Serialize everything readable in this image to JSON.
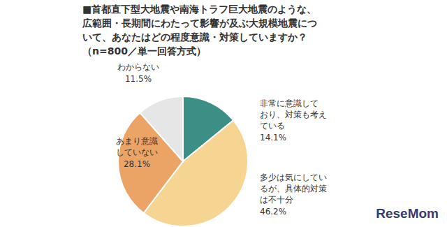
{
  "chart_data": {
    "type": "pie",
    "title": "■首都直下型大地震や南海トラフ巨大地震のような、\n広範囲・長期間にわたって影響が及ぶ大規模地震につ\nいて、あなたはどの程度意識・対策していますか？",
    "subtitle": "（n=800／単一回答方式）",
    "categories": [
      "非常に意識して\nおり、対策も考え\nている",
      "多少は気にしてい\nるが、具体的対策\nは不十分",
      "あまり意識\nしていない",
      "わからない"
    ],
    "values": [
      14.1,
      46.2,
      28.1,
      11.5
    ],
    "value_labels": [
      "14.1%",
      "46.2%",
      "28.1%",
      "11.5%"
    ],
    "colors": [
      "#3b8f85",
      "#f6d592",
      "#eca466",
      "#e6e6e6"
    ],
    "data_labels": true,
    "annotations": [
      "ReseMom"
    ]
  }
}
